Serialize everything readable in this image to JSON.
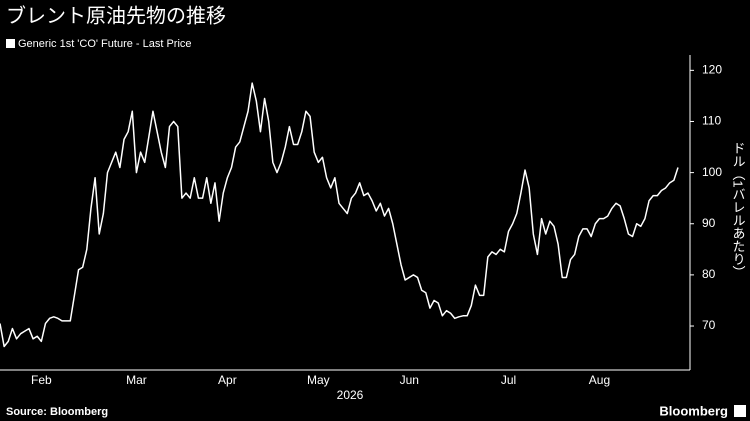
{
  "chart_data": {
    "type": "line",
    "title": "ブレント原油先物の推移",
    "x_label": "2026",
    "y_label": "ドル（1バレルあたり）",
    "source": "Source: Bloomberg",
    "brand": "Bloomberg",
    "categories": [
      null,
      null,
      null,
      null,
      null,
      null,
      null,
      null,
      null,
      null,
      "Feb",
      null,
      null,
      null,
      null,
      null,
      null,
      null,
      null,
      null,
      null,
      null,
      null,
      null,
      null,
      null,
      null,
      null,
      null,
      null,
      null,
      null,
      null,
      "Mar",
      null,
      null,
      null,
      null,
      null,
      null,
      null,
      null,
      null,
      null,
      null,
      null,
      null,
      null,
      null,
      null,
      null,
      null,
      null,
      null,
      null,
      "Apr",
      null,
      null,
      null,
      null,
      null,
      null,
      null,
      null,
      null,
      null,
      null,
      null,
      null,
      null,
      null,
      null,
      null,
      null,
      null,
      null,
      null,
      "May",
      null,
      null,
      null,
      null,
      null,
      null,
      null,
      null,
      null,
      null,
      null,
      null,
      null,
      null,
      null,
      null,
      null,
      null,
      null,
      null,
      null,
      "Jun",
      null,
      null,
      null,
      null,
      null,
      null,
      null,
      null,
      null,
      null,
      null,
      null,
      null,
      null,
      null,
      null,
      null,
      null,
      null,
      null,
      null,
      null,
      null,
      "Jul",
      null,
      null,
      null,
      null,
      null,
      null,
      null,
      null,
      null,
      null,
      null,
      null,
      null,
      null,
      null,
      null,
      null,
      null,
      null,
      null,
      null,
      "Aug",
      null,
      null,
      null,
      null,
      null,
      null,
      null,
      null,
      null,
      null,
      null,
      null,
      null,
      null,
      null,
      null,
      null,
      null,
      null
    ],
    "series": [
      {
        "name": "Generic 1st 'CO' Future - Last Price",
        "color": "#ffffff",
        "values": [
          70.5,
          66,
          67,
          69.5,
          67.5,
          68.5,
          69,
          69.5,
          67.5,
          68,
          67,
          70.5,
          71.5,
          71.8,
          71.5,
          71,
          71,
          71,
          76,
          81,
          81.5,
          85,
          93,
          99,
          88,
          92,
          100,
          102,
          104,
          101,
          106.5,
          108,
          112,
          100,
          104,
          102,
          107,
          112,
          108,
          104,
          101,
          109,
          110,
          109,
          95,
          96,
          95,
          99,
          95,
          95,
          99,
          94,
          98,
          90.5,
          96,
          99,
          101,
          105,
          106,
          109,
          112,
          117.5,
          114,
          108,
          114.5,
          110,
          102,
          100,
          102,
          105,
          109,
          105.5,
          105.5,
          108,
          112,
          111,
          104,
          102,
          103,
          99,
          97,
          99,
          94,
          93,
          92,
          95,
          96,
          98,
          95.5,
          96,
          94.5,
          92.5,
          94,
          91.5,
          93,
          90,
          86,
          82,
          79,
          79.5,
          80,
          79.5,
          77,
          76.5,
          73.5,
          75,
          74.5,
          72,
          73,
          72.5,
          71.5,
          71.8,
          72,
          72,
          74,
          78,
          76,
          76,
          83.5,
          84.5,
          84,
          85,
          84.5,
          88.5,
          90,
          92,
          96,
          100.5,
          97,
          88,
          84,
          91,
          88,
          90.5,
          89.5,
          86,
          79.5,
          79.5,
          83,
          84,
          87.5,
          89,
          89,
          87.5,
          90,
          91,
          91,
          91.5,
          93,
          94,
          93.5,
          91,
          88,
          87.5,
          90,
          89.5,
          91,
          94.5,
          95.5,
          95.5,
          96.5,
          97,
          98,
          98.5,
          101
        ]
      }
    ],
    "ylim": [
      61.4,
      123
    ],
    "yticks": [
      70,
      80,
      90,
      100,
      110,
      120
    ],
    "grid": false
  }
}
